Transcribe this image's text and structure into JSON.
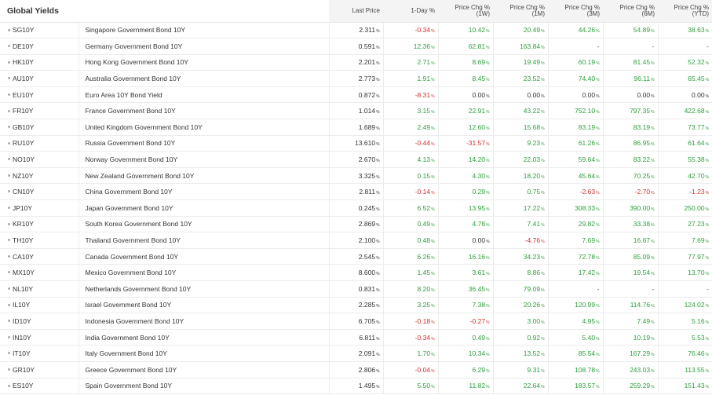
{
  "title": "Global Yields",
  "columns": {
    "last": "Last Price",
    "day": "1-Day %",
    "w1": [
      "Price Chg %",
      "(1W)"
    ],
    "m1": [
      "Price Chg %",
      "(1M)"
    ],
    "m3": [
      "Price Chg %",
      "(3M)"
    ],
    "m6": [
      "Price Chg %",
      "(6M)"
    ],
    "ytd": [
      "Price Chg %",
      "(YTD)"
    ]
  },
  "pct_suffix": "%",
  "colors": {
    "positive": "#2e9e3e",
    "negative": "#d0312d",
    "neutral": "#333333"
  },
  "rows": [
    {
      "sym": "SG10Y",
      "name": "Singapore Government Bond 10Y",
      "last": "2.311",
      "day": "-0.34",
      "w1": "10.42",
      "m1": "20.49",
      "m3": "44.26",
      "m6": "54.89",
      "ytd": "38.63"
    },
    {
      "sym": "DE10Y",
      "name": "Germany Government Bond 10Y",
      "last": "0.591",
      "day": "12.36",
      "w1": "62.81",
      "m1": "163.84",
      "m3": "-",
      "m6": "-",
      "ytd": "-"
    },
    {
      "sym": "HK10Y",
      "name": "Hong Kong Government Bond 10Y",
      "last": "2.201",
      "day": "2.71",
      "w1": "8.69",
      "m1": "19.49",
      "m3": "60.19",
      "m6": "81.45",
      "ytd": "52.32"
    },
    {
      "sym": "AU10Y",
      "name": "Australia Government Bond 10Y",
      "last": "2.773",
      "day": "1.91",
      "w1": "8.45",
      "m1": "23.52",
      "m3": "74.40",
      "m6": "96.11",
      "ytd": "65.45"
    },
    {
      "sym": "EU10Y",
      "name": "Euro Area 10Y Bond Yield",
      "last": "0.872",
      "day": "-8.31",
      "w1": "0.00",
      "m1": "0.00",
      "m3": "0.00",
      "m6": "0.00",
      "ytd": "0.00"
    },
    {
      "sym": "FR10Y",
      "name": "France Government Bond 10Y",
      "last": "1.014",
      "day": "3.15",
      "w1": "22.91",
      "m1": "43.22",
      "m3": "752.10",
      "m6": "797.35",
      "ytd": "422.68"
    },
    {
      "sym": "GB10Y",
      "name": "United Kingdom Government Bond 10Y",
      "last": "1.689",
      "day": "2.49",
      "w1": "12.60",
      "m1": "15.68",
      "m3": "83.19",
      "m6": "83.19",
      "ytd": "73.77"
    },
    {
      "sym": "RU10Y",
      "name": "Russia Government Bond 10Y",
      "last": "13.610",
      "day": "-0.44",
      "w1": "-31.57",
      "m1": "9.23",
      "m3": "61.26",
      "m6": "86.95",
      "ytd": "61.64"
    },
    {
      "sym": "NO10Y",
      "name": "Norway Government Bond 10Y",
      "last": "2.670",
      "day": "4.13",
      "w1": "14.20",
      "m1": "22.03",
      "m3": "59.64",
      "m6": "83.22",
      "ytd": "55.38"
    },
    {
      "sym": "NZ10Y",
      "name": "New Zealand Government Bond 10Y",
      "last": "3.325",
      "day": "0.15",
      "w1": "4.30",
      "m1": "18.20",
      "m3": "45.64",
      "m6": "70.25",
      "ytd": "42.70"
    },
    {
      "sym": "CN10Y",
      "name": "China Government Bond 10Y",
      "last": "2.811",
      "day": "-0.14",
      "w1": "0.29",
      "m1": "0.75",
      "m3": "-2.63",
      "m6": "-2.70",
      "ytd": "-1.23"
    },
    {
      "sym": "JP10Y",
      "name": "Japan Government Bond 10Y",
      "last": "0.245",
      "day": "6.52",
      "w1": "13.95",
      "m1": "17.22",
      "m3": "308.33",
      "m6": "390.00",
      "ytd": "250.00"
    },
    {
      "sym": "KR10Y",
      "name": "South Korea Government Bond 10Y",
      "last": "2.869",
      "day": "0.49",
      "w1": "4.78",
      "m1": "7.41",
      "m3": "29.82",
      "m6": "33.38",
      "ytd": "27.23"
    },
    {
      "sym": "TH10Y",
      "name": "Thailand Government Bond 10Y",
      "last": "2.100",
      "day": "0.48",
      "w1": "0.00",
      "m1": "-4.76",
      "m3": "7.69",
      "m6": "16.67",
      "ytd": "7.69"
    },
    {
      "sym": "CA10Y",
      "name": "Canada Government Bond 10Y",
      "last": "2.545",
      "day": "6.26",
      "w1": "16.16",
      "m1": "34.23",
      "m3": "72.78",
      "m6": "85.09",
      "ytd": "77.97"
    },
    {
      "sym": "MX10Y",
      "name": "Mexico Government Bond 10Y",
      "last": "8.600",
      "day": "1.45",
      "w1": "3.61",
      "m1": "8.86",
      "m3": "17.42",
      "m6": "19.54",
      "ytd": "13.70"
    },
    {
      "sym": "NL10Y",
      "name": "Netherlands Government Bond 10Y",
      "last": "0.831",
      "day": "8.20",
      "w1": "36.45",
      "m1": "79.09",
      "m3": "-",
      "m6": "-",
      "ytd": "-"
    },
    {
      "sym": "IL10Y",
      "name": "Israel Government Bond 10Y",
      "last": "2.285",
      "day": "3.25",
      "w1": "7.38",
      "m1": "20.26",
      "m3": "120.99",
      "m6": "114.76",
      "ytd": "124.02"
    },
    {
      "sym": "ID10Y",
      "name": "Indonesia Government Bond 10Y",
      "last": "6.705",
      "day": "-0.18",
      "w1": "-0.27",
      "m1": "3.00",
      "m3": "4.95",
      "m6": "7.49",
      "ytd": "5.16"
    },
    {
      "sym": "IN10Y",
      "name": "India Government Bond 10Y",
      "last": "6.811",
      "day": "-0.34",
      "w1": "0.49",
      "m1": "0.92",
      "m3": "5.40",
      "m6": "10.19",
      "ytd": "5.53"
    },
    {
      "sym": "IT10Y",
      "name": "Italy Government Bond 10Y",
      "last": "2.091",
      "day": "1.70",
      "w1": "10.34",
      "m1": "13.52",
      "m3": "85.54",
      "m6": "167.29",
      "ytd": "76.46"
    },
    {
      "sym": "GR10Y",
      "name": "Greece Government Bond 10Y",
      "last": "2.806",
      "day": "-0.04",
      "w1": "6.29",
      "m1": "9.31",
      "m3": "108.78",
      "m6": "243.03",
      "ytd": "113.55"
    },
    {
      "sym": "ES10Y",
      "name": "Spain Government Bond 10Y",
      "last": "1.495",
      "day": "5.50",
      "w1": "11.82",
      "m1": "22.64",
      "m3": "183.57",
      "m6": "259.29",
      "ytd": "151.43"
    }
  ]
}
